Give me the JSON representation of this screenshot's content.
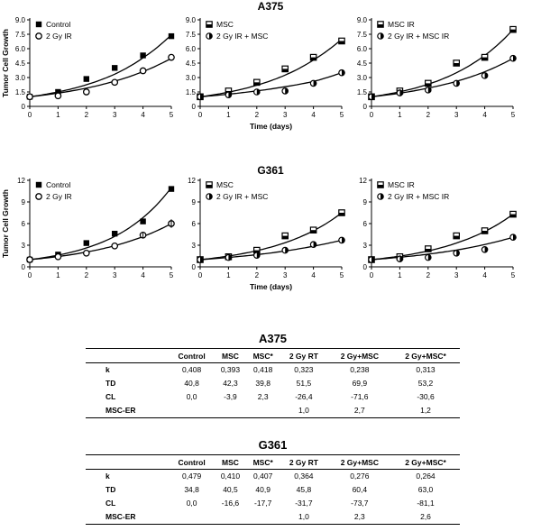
{
  "figure": {
    "rows": [
      {
        "title": "A375",
        "ylabel": "Tumor Cell Growth"
      },
      {
        "title": "G361",
        "ylabel": "Tumor Cell Growth"
      }
    ],
    "xlabel": "Time (days)"
  },
  "chart_data": [
    {
      "type": "line",
      "row": 0,
      "col": 0,
      "x": [
        0,
        1,
        2,
        3,
        4,
        5
      ],
      "xlim": [
        0,
        5
      ],
      "ylim": [
        0,
        9
      ],
      "yticks": [
        "0",
        "1.5",
        "3.0",
        "4.5",
        "6.0",
        "7.5",
        "9.0"
      ],
      "xticks": [
        "0",
        "1",
        "2",
        "3",
        "4",
        "5"
      ],
      "ylabel": "Tumor Cell Growth",
      "xlabel": "",
      "legend": "top-left",
      "series": [
        {
          "name": "Control",
          "marker": "filled-square",
          "values": [
            1.0,
            1.5,
            2.85,
            4.0,
            5.3,
            7.3
          ],
          "fit": [
            1.0,
            1.5,
            2.25,
            3.35,
            5.05,
            7.45
          ]
        },
        {
          "name": "2 Gy IR",
          "marker": "open-circle",
          "values": [
            1.0,
            1.1,
            1.5,
            2.5,
            3.7,
            5.1
          ],
          "fit": [
            1.0,
            1.38,
            1.9,
            2.62,
            3.62,
            5.0
          ]
        }
      ]
    },
    {
      "type": "line",
      "row": 0,
      "col": 1,
      "x": [
        0,
        1,
        2,
        3,
        4,
        5
      ],
      "xlim": [
        0,
        5
      ],
      "ylim": [
        0,
        9
      ],
      "yticks": [
        "0",
        "1.5",
        "3.0",
        "4.5",
        "6.0",
        "7.5",
        "9.0"
      ],
      "xticks": [
        "0",
        "1",
        "2",
        "3",
        "4",
        "5"
      ],
      "ylabel": "",
      "xlabel": "Time (days)",
      "legend": "top-left",
      "series": [
        {
          "name": "MSC",
          "marker": "half-square",
          "values": [
            1.0,
            1.6,
            2.5,
            3.9,
            5.1,
            6.8
          ],
          "fit": [
            1.0,
            1.48,
            2.2,
            3.25,
            4.82,
            7.0
          ]
        },
        {
          "name": "2 Gy IR + MSC",
          "marker": "half-circle",
          "values": [
            1.0,
            1.2,
            1.5,
            1.6,
            2.4,
            3.5
          ],
          "fit": [
            1.0,
            1.27,
            1.61,
            2.04,
            2.59,
            3.5
          ]
        }
      ]
    },
    {
      "type": "line",
      "row": 0,
      "col": 2,
      "x": [
        0,
        1,
        2,
        3,
        4,
        5
      ],
      "xlim": [
        0,
        5
      ],
      "ylim": [
        0,
        9
      ],
      "yticks": [
        "0",
        "1.5",
        "3.0",
        "4.5",
        "6.0",
        "7.5",
        "9.0"
      ],
      "xticks": [
        "0",
        "1",
        "2",
        "3",
        "4",
        "5"
      ],
      "ylabel": "",
      "xlabel": "",
      "legend": "top-left",
      "series": [
        {
          "name": "MSC IR",
          "marker": "half-square",
          "values": [
            1.0,
            1.6,
            2.4,
            4.5,
            5.1,
            8.0
          ],
          "fit": [
            1.0,
            1.52,
            2.3,
            3.5,
            5.3,
            8.0
          ]
        },
        {
          "name": "2 Gy IR + MSC IR",
          "marker": "half-circle",
          "values": [
            1.0,
            1.4,
            1.7,
            2.4,
            3.2,
            5.0
          ],
          "fit": [
            1.0,
            1.37,
            1.9,
            2.6,
            3.6,
            5.0
          ]
        }
      ]
    },
    {
      "type": "line",
      "row": 1,
      "col": 0,
      "x": [
        0,
        1,
        2,
        3,
        4,
        5
      ],
      "xlim": [
        0,
        5
      ],
      "ylim": [
        0,
        12
      ],
      "yticks": [
        "0",
        "3",
        "6",
        "9",
        "12"
      ],
      "xticks": [
        "0",
        "1",
        "2",
        "3",
        "4",
        "5"
      ],
      "ylabel": "Tumor Cell Growth",
      "xlabel": "",
      "legend": "top-left",
      "series": [
        {
          "name": "Control",
          "marker": "filled-square",
          "values": [
            1.0,
            1.7,
            3.3,
            4.6,
            6.3,
            10.8
          ],
          "fit": [
            1.0,
            1.62,
            2.62,
            4.22,
            6.83,
            11.0
          ]
        },
        {
          "name": "2 Gy IR",
          "marker": "open-circle",
          "values": [
            1.0,
            1.4,
            1.9,
            2.9,
            4.4,
            6.0
          ],
          "fit": [
            1.0,
            1.43,
            2.05,
            2.93,
            4.2,
            6.0
          ]
        }
      ]
    },
    {
      "type": "line",
      "row": 1,
      "col": 1,
      "x": [
        0,
        1,
        2,
        3,
        4,
        5
      ],
      "xlim": [
        0,
        5
      ],
      "ylim": [
        0,
        12
      ],
      "yticks": [
        "0",
        "3",
        "6",
        "9",
        "12"
      ],
      "xticks": [
        "0",
        "1",
        "2",
        "3",
        "4",
        "5"
      ],
      "ylabel": "",
      "xlabel": "Time (days)",
      "legend": "top-left",
      "series": [
        {
          "name": "MSC",
          "marker": "half-square",
          "values": [
            1.0,
            1.4,
            2.3,
            4.3,
            5.1,
            7.5
          ],
          "fit": [
            1.0,
            1.5,
            2.24,
            3.35,
            5.0,
            7.5
          ]
        },
        {
          "name": "2 Gy IR + MSC",
          "marker": "half-circle",
          "values": [
            1.0,
            1.3,
            1.6,
            2.3,
            3.1,
            3.7
          ],
          "fit": [
            1.0,
            1.3,
            1.69,
            2.2,
            2.86,
            3.7
          ]
        }
      ]
    },
    {
      "type": "line",
      "row": 1,
      "col": 2,
      "x": [
        0,
        1,
        2,
        3,
        4,
        5
      ],
      "xlim": [
        0,
        5
      ],
      "ylim": [
        0,
        12
      ],
      "yticks": [
        "0",
        "3",
        "6",
        "9",
        "12"
      ],
      "xticks": [
        "0",
        "1",
        "2",
        "3",
        "4",
        "5"
      ],
      "ylabel": "",
      "xlabel": "",
      "legend": "top-left",
      "series": [
        {
          "name": "MSC IR",
          "marker": "half-square",
          "values": [
            1.0,
            1.4,
            2.5,
            4.3,
            5.0,
            7.3
          ],
          "fit": [
            1.0,
            1.49,
            2.2,
            3.3,
            4.9,
            7.3
          ]
        },
        {
          "name": "2 Gy IR + MSC IR",
          "marker": "half-circle",
          "values": [
            1.0,
            1.1,
            1.3,
            1.9,
            2.4,
            4.1
          ],
          "fit": [
            1.0,
            1.33,
            1.76,
            2.33,
            3.1,
            4.1
          ]
        }
      ]
    }
  ],
  "tables": [
    {
      "title": "A375",
      "columns": [
        "",
        "Control",
        "MSC",
        "MSC*",
        "2 Gy RT",
        "2 Gy+MSC",
        "2 Gy+MSC*"
      ],
      "rows": [
        [
          "k",
          "0,408",
          "0,393",
          "0,418",
          "0,323",
          "0,238",
          "0,313"
        ],
        [
          "TD",
          "40,8",
          "42,3",
          "39,8",
          "51,5",
          "69,9",
          "53,2"
        ],
        [
          "CL",
          "0,0",
          "-3,9",
          "2,3",
          "-26,4",
          "-71,6",
          "-30,6"
        ],
        [
          "MSC-ER",
          "",
          "",
          "",
          "1,0",
          "2,7",
          "1,2"
        ]
      ]
    },
    {
      "title": "G361",
      "columns": [
        "",
        "Control",
        "MSC",
        "MSC*",
        "2 Gy RT",
        "2 Gy+MSC",
        "2 Gy+MSC*"
      ],
      "rows": [
        [
          "k",
          "0,479",
          "0,410",
          "0,407",
          "0,364",
          "0,276",
          "0,264"
        ],
        [
          "TD",
          "34,8",
          "40,5",
          "40,9",
          "45,8",
          "60,4",
          "63,0"
        ],
        [
          "CL",
          "0,0",
          "-16,6",
          "-17,7",
          "-31,7",
          "-73,7",
          "-81,1"
        ],
        [
          "MSC-ER",
          "",
          "",
          "",
          "1,0",
          "2,3",
          "2,6"
        ]
      ]
    }
  ]
}
